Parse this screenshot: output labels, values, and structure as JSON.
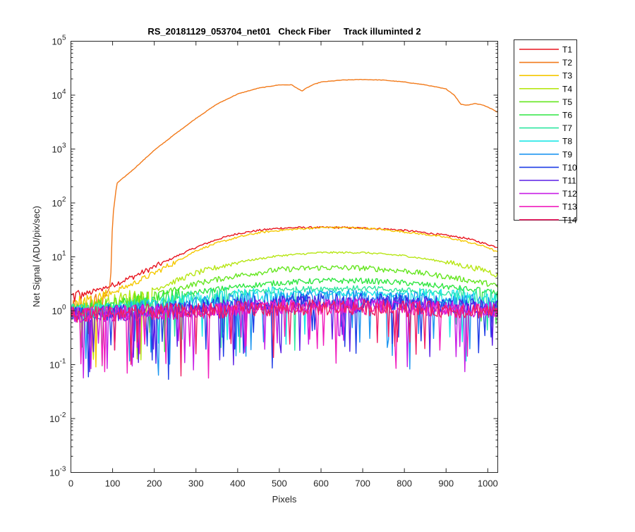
{
  "chart_data": {
    "type": "line",
    "title": "RS_20181129_053704_net01   Check Fiber     Track illuminted 2",
    "xlabel": "Pixels",
    "ylabel": "Net Signal (ADU/pix/sec)",
    "xlim": [
      0,
      1024
    ],
    "ylim": [
      0.001,
      100000
    ],
    "yscale": "log",
    "xticks": [
      0,
      100,
      200,
      300,
      400,
      500,
      600,
      700,
      800,
      900,
      1000
    ],
    "xtick_labels": [
      "0",
      "100",
      "200",
      "300",
      "400",
      "500",
      "600",
      "700",
      "800",
      "900",
      "1000"
    ],
    "yticks": [
      0.001,
      0.01,
      0.1,
      1,
      10,
      100,
      1000,
      10000,
      100000
    ],
    "ytick_labels": [
      {
        "base": "10",
        "exp": "-3"
      },
      {
        "base": "10",
        "exp": "-2"
      },
      {
        "base": "10",
        "exp": "-1"
      },
      {
        "base": "10",
        "exp": "0"
      },
      {
        "base": "10",
        "exp": "1"
      },
      {
        "base": "10",
        "exp": "2"
      },
      {
        "base": "10",
        "exp": "3"
      },
      {
        "base": "10",
        "exp": "4"
      },
      {
        "base": "10",
        "exp": "5"
      }
    ],
    "grid": false,
    "legend_position": "outside-top-right",
    "series": [
      {
        "name": "T1",
        "color": "#e8141e",
        "x": [
          0,
          50,
          100,
          150,
          200,
          250,
          300,
          350,
          400,
          450,
          500,
          550,
          600,
          650,
          700,
          750,
          800,
          850,
          900,
          950,
          1000,
          1024
        ],
        "y": [
          1.8,
          2.2,
          3.0,
          4.3,
          6.5,
          10,
          15,
          21,
          27,
          31,
          34,
          35,
          35,
          35,
          34,
          33,
          31,
          28,
          25,
          22,
          17,
          15
        ]
      },
      {
        "name": "T2",
        "color": "#f27a1a",
        "x": [
          0,
          50,
          80,
          95,
          100,
          110,
          150,
          200,
          250,
          300,
          350,
          400,
          450,
          500,
          530,
          545,
          555,
          565,
          580,
          600,
          650,
          700,
          750,
          800,
          850,
          900,
          920,
          935,
          950,
          970,
          990,
          1010,
          1024
        ],
        "y": [
          1.2,
          1.4,
          1.6,
          3,
          50,
          230,
          420,
          950,
          1900,
          3700,
          6800,
          10500,
          13500,
          15500,
          15500,
          13000,
          12000,
          13500,
          15500,
          17500,
          19000,
          19500,
          19000,
          17500,
          15500,
          13000,
          10000,
          6800,
          6500,
          7000,
          6500,
          5500,
          4800
        ]
      },
      {
        "name": "T3",
        "color": "#f5c800",
        "x": [
          0,
          50,
          100,
          150,
          200,
          250,
          300,
          350,
          400,
          450,
          500,
          550,
          600,
          650,
          700,
          750,
          800,
          850,
          900,
          950,
          1000,
          1024
        ],
        "y": [
          1.3,
          1.6,
          2.2,
          3.2,
          5,
          8,
          13,
          18,
          23,
          28,
          31,
          33,
          35,
          35,
          34,
          32,
          29,
          26,
          23,
          19,
          15,
          12
        ]
      },
      {
        "name": "T4",
        "color": "#b7e614",
        "x": [
          0,
          100,
          200,
          300,
          400,
          500,
          600,
          700,
          800,
          900,
          1000,
          1024
        ],
        "y": [
          1.0,
          1.4,
          2.5,
          5,
          8,
          10.5,
          12,
          12,
          10.5,
          8,
          5.5,
          4.5
        ]
      },
      {
        "name": "T5",
        "color": "#64e61e",
        "x": [
          0,
          100,
          200,
          300,
          400,
          500,
          600,
          700,
          800,
          900,
          1000,
          1024
        ],
        "y": [
          1.0,
          1.2,
          1.9,
          3.2,
          4.5,
          5.8,
          6.3,
          6.2,
          5.5,
          4.3,
          3.2,
          2.8
        ]
      },
      {
        "name": "T6",
        "color": "#2ee640",
        "x": [
          0,
          100,
          200,
          300,
          400,
          500,
          600,
          700,
          800,
          900,
          1000,
          1024
        ],
        "y": [
          1.0,
          1.1,
          1.5,
          2.2,
          2.8,
          3.3,
          3.6,
          3.6,
          3.3,
          2.8,
          2.3,
          2.1
        ]
      },
      {
        "name": "T7",
        "color": "#2ee6a0",
        "x": [
          0,
          100,
          200,
          300,
          400,
          500,
          600,
          700,
          800,
          900,
          1000,
          1024
        ],
        "y": [
          0.95,
          1.05,
          1.3,
          1.7,
          2.1,
          2.4,
          2.6,
          2.6,
          2.4,
          2.1,
          1.8,
          1.7
        ]
      },
      {
        "name": "T8",
        "color": "#1ee6e6",
        "x": [
          0,
          100,
          200,
          300,
          400,
          500,
          600,
          700,
          800,
          900,
          1000,
          1024
        ],
        "y": [
          0.9,
          1.0,
          1.2,
          1.5,
          1.8,
          2.0,
          2.1,
          2.1,
          2.0,
          1.8,
          1.6,
          1.5
        ]
      },
      {
        "name": "T9",
        "color": "#1e96f0",
        "x": [
          0,
          100,
          200,
          300,
          400,
          500,
          600,
          700,
          800,
          900,
          1000,
          1024
        ],
        "y": [
          0.9,
          0.95,
          1.1,
          1.3,
          1.5,
          1.65,
          1.75,
          1.75,
          1.65,
          1.5,
          1.4,
          1.35
        ]
      },
      {
        "name": "T10",
        "color": "#1e3ce6",
        "x": [
          0,
          100,
          200,
          300,
          400,
          500,
          600,
          700,
          800,
          900,
          1000,
          1024
        ],
        "y": [
          0.85,
          0.9,
          1.0,
          1.15,
          1.3,
          1.45,
          1.5,
          1.5,
          1.45,
          1.3,
          1.2,
          1.15
        ]
      },
      {
        "name": "T11",
        "color": "#5a1ee6",
        "x": [
          0,
          100,
          200,
          300,
          400,
          500,
          600,
          700,
          800,
          900,
          1000,
          1024
        ],
        "y": [
          0.85,
          0.9,
          0.95,
          1.05,
          1.2,
          1.3,
          1.35,
          1.35,
          1.3,
          1.2,
          1.1,
          1.05
        ]
      },
      {
        "name": "T12",
        "color": "#c81ee6",
        "x": [
          0,
          100,
          200,
          300,
          400,
          500,
          600,
          700,
          800,
          900,
          1000,
          1024
        ],
        "y": [
          0.85,
          0.9,
          0.95,
          1.0,
          1.1,
          1.2,
          1.25,
          1.25,
          1.2,
          1.1,
          1.05,
          1.0
        ]
      },
      {
        "name": "T13",
        "color": "#f01ebe",
        "x": [
          0,
          100,
          200,
          300,
          400,
          500,
          600,
          700,
          800,
          900,
          1000,
          1024
        ],
        "y": [
          0.85,
          0.9,
          0.95,
          1.0,
          1.05,
          1.15,
          1.2,
          1.2,
          1.15,
          1.05,
          1.0,
          1.0
        ]
      },
      {
        "name": "T14",
        "color": "#f01e64",
        "x": [
          0,
          100,
          200,
          300,
          400,
          500,
          600,
          700,
          800,
          900,
          1000,
          1024
        ],
        "y": [
          0.85,
          0.9,
          0.95,
          1.0,
          1.05,
          1.1,
          1.15,
          1.15,
          1.1,
          1.05,
          1.0,
          1.0
        ]
      }
    ]
  }
}
